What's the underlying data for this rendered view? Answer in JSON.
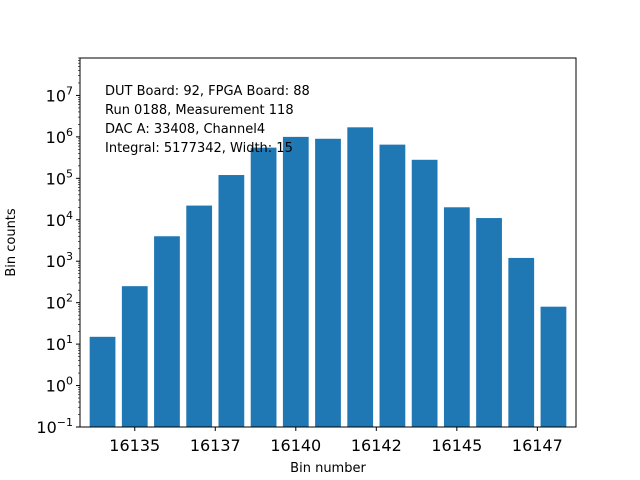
{
  "chart_data": {
    "type": "bar",
    "x": [
      16134,
      16135,
      16136,
      16137,
      16138,
      16139,
      16140,
      16141,
      16142,
      16143,
      16144,
      16145,
      16146,
      16147,
      16148
    ],
    "values": [
      15,
      250,
      4000,
      22000,
      120000,
      550000,
      1000000,
      900000,
      1700000,
      650000,
      280000,
      20000,
      11000,
      1200,
      80
    ],
    "xlabel": "Bin number",
    "ylabel": "Bin counts",
    "yscale": "log",
    "ylim": [
      0.1,
      80000000
    ],
    "xlim": [
      16133.3,
      16148.7
    ],
    "bar_color": "#1f77b4",
    "x_ticks": [
      16135,
      16137.5,
      16140,
      16142.5,
      16145,
      16147.5
    ],
    "x_tick_labels": [
      "16135",
      "16137",
      "16140",
      "16142",
      "16145",
      "16147"
    ],
    "y_tick_exponents": [
      -1,
      0,
      1,
      2,
      3,
      4,
      5,
      6,
      7
    ],
    "y_tick_base": "10",
    "annotations": [
      "DUT Board: 92, FPGA Board: 88",
      "Run 0188, Measurement 118",
      "DAC A: 33408, Channel4",
      "Integral: 5177342, Width: 15"
    ]
  }
}
